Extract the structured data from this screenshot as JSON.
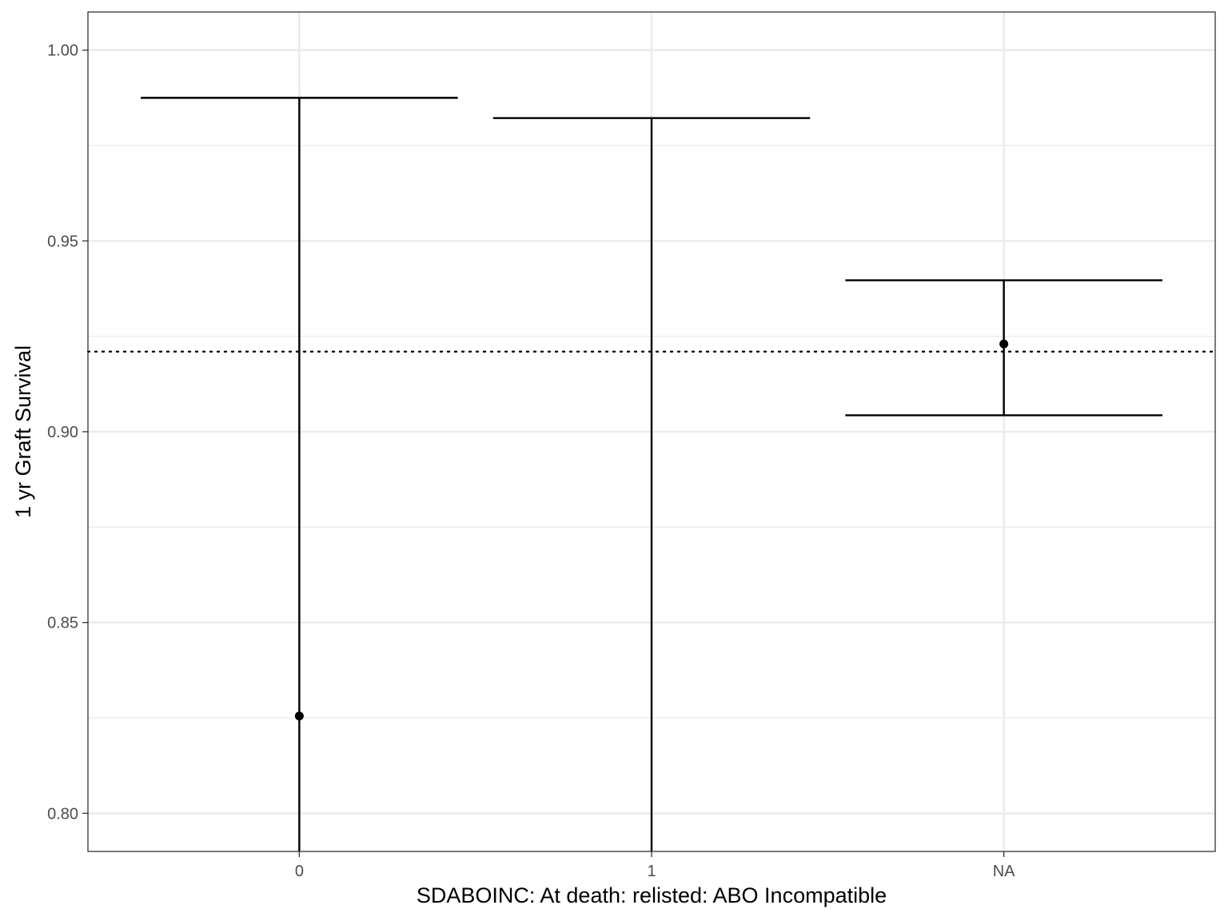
{
  "chart_data": {
    "type": "errorbar",
    "xlabel": "SDABOINC: At death: relisted: ABO Incompatible",
    "ylabel": "1 yr Graft Survival",
    "categories": [
      "0",
      "1",
      "NA"
    ],
    "points": [
      {
        "category": "0",
        "estimate": 0.8255,
        "lower": 0.79,
        "upper": 0.9875
      },
      {
        "category": "1",
        "estimate": null,
        "lower": 0.79,
        "upper": 0.9822
      },
      {
        "category": "NA",
        "estimate": 0.923,
        "lower": 0.9043,
        "upper": 0.9397
      }
    ],
    "reference_line": {
      "value": 0.921,
      "style": "dotted"
    },
    "ylim": [
      0.79,
      1.01
    ],
    "yticks": [
      "0.80",
      "0.85",
      "0.90",
      "0.95",
      "1.00"
    ],
    "yticks_minor": [
      0.825,
      0.875,
      0.925,
      0.975
    ],
    "grid": true,
    "colors": {
      "mark": "#000000",
      "grid": "#ebebeb",
      "panel_border": "#333333"
    }
  }
}
